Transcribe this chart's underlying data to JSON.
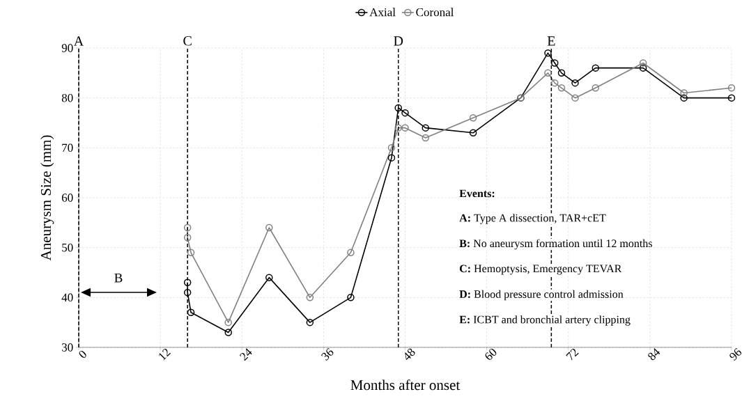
{
  "chart_data": {
    "type": "line",
    "xlabel": "Months after onset",
    "ylabel": "Aneurysm Size (mm)",
    "xlim": [
      0,
      96
    ],
    "xticks": [
      0,
      12,
      24,
      36,
      48,
      60,
      72,
      84,
      96
    ],
    "ylim": [
      30,
      90
    ],
    "yticks": [
      30,
      40,
      50,
      60,
      70,
      80,
      90
    ],
    "grid": true,
    "legend": "top",
    "marker": "circle",
    "line_style": "solid",
    "series": [
      {
        "name": "Axial",
        "color": "#000000",
        "x": [
          16,
          16,
          16.5,
          22,
          28,
          34,
          40,
          46,
          47,
          48,
          51,
          58,
          65,
          69,
          70,
          71,
          73,
          76,
          83,
          89,
          96
        ],
        "values": [
          43,
          41,
          37,
          33,
          44,
          35,
          40,
          68,
          78,
          77,
          74,
          73,
          80,
          89,
          87,
          85,
          83,
          86,
          86,
          80,
          80
        ]
      },
      {
        "name": "Coronal",
        "color": "#808080",
        "x": [
          16,
          16,
          16.5,
          22,
          28,
          34,
          40,
          46,
          47,
          48,
          51,
          58,
          65,
          69,
          70,
          71,
          73,
          76,
          83,
          89,
          96
        ],
        "values": [
          54,
          52,
          49,
          35,
          54,
          40,
          49,
          70,
          74,
          74,
          72,
          76,
          80,
          85,
          83,
          82,
          80,
          82,
          87,
          81,
          82
        ]
      }
    ],
    "ref_lines": [
      {
        "axis": "x",
        "value": 0,
        "label": "A",
        "color": "#000000",
        "line_style": "dashed"
      },
      {
        "axis": "x",
        "value": 16,
        "label": "C",
        "color": "#000000",
        "line_style": "dashed"
      },
      {
        "axis": "x",
        "value": 47,
        "label": "D",
        "color": "#000000",
        "line_style": "dashed"
      },
      {
        "axis": "x",
        "value": 69.5,
        "label": "E",
        "color": "#000000",
        "line_style": "dashed"
      }
    ],
    "annotations": [
      "B",
      "Events:",
      "**A:** Type A dissection, TAR+cET",
      "**B:** No aneurysm formation until 12 months",
      "**C:** Hemoptysis, Emergency TEVAR",
      "**D:** Blood pressure control admission",
      "**E:** ICBT and bronchial artery clipping"
    ]
  }
}
